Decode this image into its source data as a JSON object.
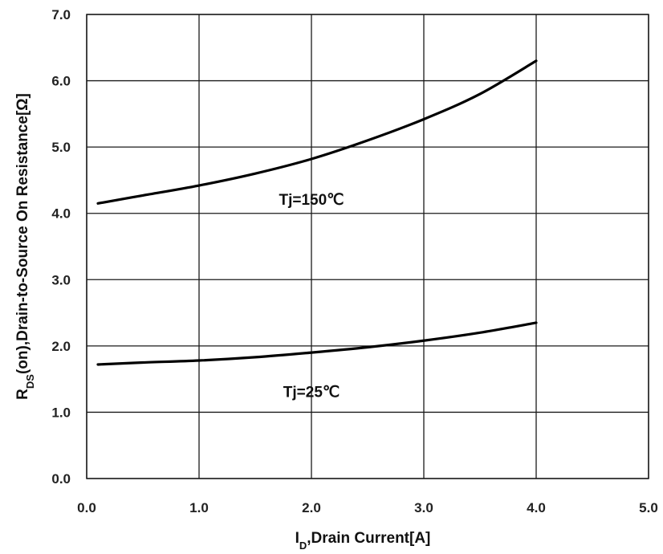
{
  "chart_data": {
    "type": "line",
    "xlabel_main": "I",
    "xlabel_sub": "D",
    "xlabel_rest": ",Drain Current[A]",
    "ylabel_main": "R",
    "ylabel_sub": "DS",
    "ylabel_rest": "(on),Drain-to-Source On Resistance[Ω]",
    "xlim": [
      0,
      5
    ],
    "ylim": [
      0,
      7
    ],
    "x_ticks": [
      "0.0",
      "1.0",
      "2.0",
      "3.0",
      "4.0",
      "5.0"
    ],
    "y_ticks": [
      "0.0",
      "1.0",
      "2.0",
      "3.0",
      "4.0",
      "5.0",
      "6.0",
      "7.0"
    ],
    "grid": true,
    "series": [
      {
        "name": "Tj=150℃",
        "x": [
          0.1,
          0.5,
          1.0,
          1.5,
          2.0,
          2.5,
          3.0,
          3.5,
          4.0
        ],
        "y": [
          4.15,
          4.27,
          4.42,
          4.6,
          4.82,
          5.1,
          5.42,
          5.8,
          6.3
        ]
      },
      {
        "name": "Tj=25℃",
        "x": [
          0.1,
          0.5,
          1.0,
          1.5,
          2.0,
          2.5,
          3.0,
          3.5,
          4.0
        ],
        "y": [
          1.72,
          1.75,
          1.78,
          1.83,
          1.9,
          1.98,
          2.08,
          2.2,
          2.35
        ]
      }
    ]
  }
}
